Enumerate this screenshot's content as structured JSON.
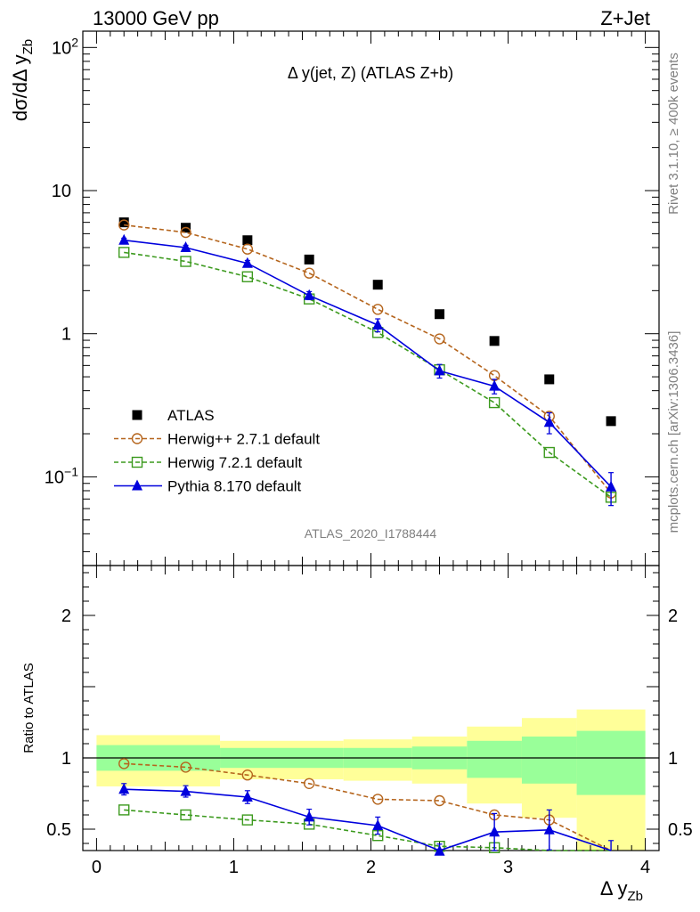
{
  "header": {
    "left_label": "13000 GeV pp",
    "right_label": "Z+Jet",
    "plot_title": "Δ y(jet, Z) (ATLAS Z+b)",
    "watermark": "ATLAS_2020_I1788444",
    "side_text_top": "Rivet 3.1.10, ≥ 400k events",
    "side_text_bottom": "mcplots.cern.ch [arXiv:1306.3436]"
  },
  "chart_data": [
    {
      "type": "scatter",
      "panel": "main",
      "yscale": "log",
      "ylabel_main": "dσ/dΔ y",
      "ylabel_sub": "Zb",
      "xlabel_main": "Δ y",
      "xlabel_sub": "Zb",
      "xlim": [
        -0.1,
        4.1
      ],
      "ylim": [
        0.024,
        130
      ],
      "yticks": [
        {
          "value": 100,
          "label": "10",
          "exp": "2"
        },
        {
          "value": 10,
          "label": "10",
          "exp": ""
        },
        {
          "value": 1,
          "label": "1",
          "exp": ""
        },
        {
          "value": 0.1,
          "label": "10",
          "exp": "−1"
        }
      ],
      "x": [
        0.2,
        0.65,
        1.1,
        1.55,
        2.05,
        2.5,
        2.9,
        3.3,
        3.75
      ],
      "series": [
        {
          "name": "ATLAS",
          "color": "#000000",
          "marker": "square-filled",
          "line": "none",
          "values": [
            6.0,
            5.5,
            4.5,
            3.3,
            2.2,
            1.37,
            0.89,
            0.48,
            0.245
          ]
        },
        {
          "name": "Herwig++ 2.7.1 default",
          "color": "#b5651d",
          "marker": "circle-open",
          "line": "dashed",
          "values": [
            5.75,
            5.1,
            3.9,
            2.65,
            1.48,
            0.92,
            0.51,
            0.265,
            0.077
          ]
        },
        {
          "name": "Herwig 7.2.1 default",
          "color": "#3c9a1e",
          "marker": "square-open",
          "line": "dashed",
          "values": [
            3.7,
            3.2,
            2.5,
            1.75,
            1.02,
            0.56,
            0.33,
            0.148,
            0.072
          ]
        },
        {
          "name": "Pythia 8.170 default",
          "color": "#0000dd",
          "marker": "triangle-filled",
          "line": "solid",
          "values": [
            4.5,
            4.0,
            3.1,
            1.85,
            1.15,
            0.55,
            0.43,
            0.24,
            0.085
          ],
          "errors": [
            0.15,
            0.15,
            0.15,
            0.12,
            0.12,
            0.06,
            0.05,
            0.04,
            0.022
          ]
        }
      ]
    },
    {
      "type": "scatter",
      "panel": "ratio",
      "ylabel": "Ratio to ATLAS",
      "xlim": [
        -0.1,
        4.1
      ],
      "ylim": [
        0.35,
        2.35
      ],
      "xticks": [
        "0",
        "1",
        "2",
        "3",
        "4"
      ],
      "yticks": [
        "0.5",
        "1",
        "2"
      ],
      "bins": [
        {
          "lo": 0.0,
          "hi": 0.9,
          "stat": [
            0.91,
            1.09
          ],
          "total": [
            0.8,
            1.16
          ]
        },
        {
          "lo": 0.9,
          "hi": 1.8,
          "stat": [
            0.93,
            1.07
          ],
          "total": [
            0.85,
            1.12
          ]
        },
        {
          "lo": 1.8,
          "hi": 2.3,
          "stat": [
            0.93,
            1.07
          ],
          "total": [
            0.84,
            1.13
          ]
        },
        {
          "lo": 2.3,
          "hi": 2.7,
          "stat": [
            0.92,
            1.08
          ],
          "total": [
            0.82,
            1.15
          ]
        },
        {
          "lo": 2.7,
          "hi": 3.1,
          "stat": [
            0.86,
            1.12
          ],
          "total": [
            0.68,
            1.22
          ]
        },
        {
          "lo": 3.1,
          "hi": 3.5,
          "stat": [
            0.82,
            1.15
          ],
          "total": [
            0.58,
            1.28
          ]
        },
        {
          "lo": 3.5,
          "hi": 4.0,
          "stat": [
            0.74,
            1.19
          ],
          "total": [
            0.35,
            1.34
          ]
        }
      ],
      "x": [
        0.2,
        0.65,
        1.1,
        1.55,
        2.05,
        2.5,
        2.9,
        3.3,
        3.75
      ],
      "series": [
        {
          "name": "Herwig++ 2.7.1 default",
          "color": "#b5651d",
          "marker": "circle-open",
          "line": "dashed",
          "values": [
            0.96,
            0.935,
            0.88,
            0.82,
            0.71,
            0.7,
            0.6,
            0.565,
            0.31
          ]
        },
        {
          "name": "Herwig 7.2.1 default",
          "color": "#3c9a1e",
          "marker": "square-open",
          "line": "dashed",
          "values": [
            0.635,
            0.6,
            0.565,
            0.535,
            0.455,
            0.38,
            0.37,
            0.31,
            0.29
          ]
        },
        {
          "name": "Pythia 8.170 default",
          "color": "#0000dd",
          "marker": "triangle-filled",
          "line": "solid",
          "values": [
            0.78,
            0.765,
            0.725,
            0.585,
            0.525,
            0.345,
            0.48,
            0.495,
            0.33
          ],
          "errors": [
            0.04,
            0.04,
            0.045,
            0.055,
            0.06,
            0.05,
            0.13,
            0.14,
            0.09
          ]
        }
      ]
    }
  ]
}
